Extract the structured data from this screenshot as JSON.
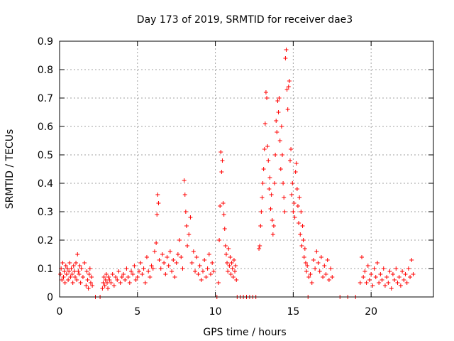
{
  "chart_data": {
    "type": "scatter",
    "title": "Day 173 of 2019, SRMTID for receiver dae3",
    "xlabel": "GPS time / hours",
    "ylabel": "SRMTID / TECUs",
    "xlim": [
      0,
      24
    ],
    "ylim": [
      0,
      0.9
    ],
    "xticks": [
      0,
      5,
      10,
      15,
      20
    ],
    "yticks": [
      0,
      0.1,
      0.2,
      0.3,
      0.4,
      0.5,
      0.6,
      0.7,
      0.8,
      0.9
    ],
    "xtick_labels": [
      "0",
      "5",
      "10",
      "15",
      "20"
    ],
    "ytick_labels": [
      "0",
      "0.1",
      "0.2",
      "0.3",
      "0.4",
      "0.5",
      "0.6",
      "0.7",
      "0.8",
      "0.9"
    ],
    "grid": true,
    "marker": "plus",
    "color": "#ff0000",
    "series": [
      {
        "name": "SRMTID",
        "x": [
          0.05,
          0.1,
          0.15,
          0.2,
          0.25,
          0.3,
          0.35,
          0.4,
          0.45,
          0.5,
          0.55,
          0.6,
          0.65,
          0.7,
          0.75,
          0.8,
          0.85,
          0.9,
          0.95,
          1.0,
          1.05,
          1.1,
          1.15,
          1.2,
          1.25,
          1.3,
          1.35,
          1.4,
          1.5,
          1.6,
          1.7,
          1.75,
          1.8,
          1.85,
          1.9,
          1.95,
          2.0,
          2.05,
          2.1,
          2.3,
          2.6,
          2.75,
          2.8,
          2.85,
          2.9,
          2.95,
          3.0,
          3.05,
          3.1,
          3.15,
          3.2,
          3.3,
          3.4,
          3.5,
          3.6,
          3.7,
          3.8,
          3.9,
          4.0,
          4.1,
          4.2,
          4.3,
          4.4,
          4.5,
          4.6,
          4.7,
          4.8,
          4.9,
          5.0,
          5.1,
          5.2,
          5.3,
          5.4,
          5.5,
          5.6,
          5.7,
          5.8,
          5.9,
          6.0,
          6.1,
          6.2,
          6.25,
          6.3,
          6.35,
          6.4,
          6.5,
          6.6,
          6.7,
          6.8,
          6.9,
          7.0,
          7.1,
          7.2,
          7.3,
          7.4,
          7.5,
          7.6,
          7.7,
          7.8,
          7.9,
          8.0,
          8.05,
          8.1,
          8.15,
          8.2,
          8.3,
          8.4,
          8.5,
          8.6,
          8.7,
          8.8,
          8.9,
          9.0,
          9.1,
          9.2,
          9.3,
          9.4,
          9.5,
          9.6,
          9.7,
          9.8,
          9.9,
          10.1,
          10.2,
          10.25,
          10.3,
          10.35,
          10.4,
          10.45,
          10.5,
          10.55,
          10.6,
          10.65,
          10.7,
          10.75,
          10.8,
          10.85,
          10.9,
          10.95,
          11.0,
          11.05,
          11.1,
          11.15,
          11.2,
          11.25,
          11.3,
          11.35,
          11.4,
          11.6,
          11.8,
          12.0,
          12.2,
          12.4,
          12.6,
          12.8,
          12.85,
          12.9,
          12.95,
          13.0,
          13.05,
          13.1,
          13.15,
          13.2,
          13.25,
          13.3,
          13.35,
          13.4,
          13.45,
          13.5,
          13.55,
          13.6,
          13.65,
          13.7,
          13.75,
          13.8,
          13.85,
          13.9,
          13.95,
          14.0,
          14.05,
          14.1,
          14.15,
          14.2,
          14.25,
          14.3,
          14.35,
          14.4,
          14.45,
          14.5,
          14.55,
          14.6,
          14.65,
          14.7,
          14.75,
          14.8,
          14.85,
          14.9,
          14.95,
          15.0,
          15.05,
          15.1,
          15.15,
          15.2,
          15.25,
          15.3,
          15.35,
          15.4,
          15.45,
          15.5,
          15.55,
          15.6,
          15.65,
          15.7,
          15.75,
          15.8,
          15.85,
          15.9,
          15.95,
          16.0,
          16.1,
          16.2,
          16.3,
          16.4,
          16.5,
          16.6,
          16.7,
          16.8,
          16.9,
          17.0,
          17.1,
          17.2,
          17.3,
          17.4,
          17.5,
          18.0,
          18.5,
          19.0,
          19.3,
          19.4,
          19.5,
          19.6,
          19.7,
          19.8,
          19.9,
          20.0,
          20.1,
          20.2,
          20.3,
          20.4,
          20.5,
          20.6,
          20.7,
          20.8,
          20.9,
          21.0,
          21.1,
          21.2,
          21.3,
          21.4,
          21.5,
          21.6,
          21.7,
          21.8,
          21.9,
          22.0,
          22.1,
          22.2,
          22.3,
          22.4,
          22.5,
          22.6,
          22.7
        ],
        "y": [
          0.08,
          0.1,
          0.06,
          0.12,
          0.07,
          0.09,
          0.05,
          0.11,
          0.08,
          0.1,
          0.06,
          0.09,
          0.12,
          0.07,
          0.1,
          0.08,
          0.05,
          0.11,
          0.09,
          0.07,
          0.12,
          0.06,
          0.15,
          0.09,
          0.08,
          0.11,
          0.05,
          0.1,
          0.07,
          0.12,
          0.04,
          0.09,
          0.06,
          0.03,
          0.08,
          0.1,
          0.05,
          0.07,
          0.04,
          0.0,
          0.0,
          0.03,
          0.05,
          0.07,
          0.04,
          0.06,
          0.08,
          0.05,
          0.03,
          0.07,
          0.06,
          0.05,
          0.08,
          0.04,
          0.07,
          0.06,
          0.09,
          0.05,
          0.07,
          0.08,
          0.06,
          0.1,
          0.07,
          0.05,
          0.09,
          0.08,
          0.11,
          0.06,
          0.07,
          0.09,
          0.12,
          0.08,
          0.1,
          0.05,
          0.14,
          0.09,
          0.07,
          0.11,
          0.1,
          0.16,
          0.19,
          0.29,
          0.36,
          0.33,
          0.13,
          0.1,
          0.15,
          0.12,
          0.08,
          0.14,
          0.11,
          0.16,
          0.09,
          0.13,
          0.07,
          0.12,
          0.15,
          0.2,
          0.14,
          0.1,
          0.41,
          0.36,
          0.3,
          0.25,
          0.18,
          0.22,
          0.28,
          0.12,
          0.16,
          0.09,
          0.14,
          0.08,
          0.11,
          0.06,
          0.09,
          0.13,
          0.07,
          0.1,
          0.15,
          0.08,
          0.12,
          0.09,
          0.0,
          0.05,
          0.2,
          0.32,
          0.51,
          0.44,
          0.48,
          0.33,
          0.29,
          0.24,
          0.18,
          0.15,
          0.12,
          0.09,
          0.17,
          0.11,
          0.14,
          0.08,
          0.12,
          0.1,
          0.07,
          0.13,
          0.09,
          0.11,
          0.06,
          0.0,
          0.0,
          0.0,
          0.0,
          0.0,
          0.0,
          0.0,
          0.17,
          0.18,
          0.25,
          0.3,
          0.35,
          0.4,
          0.45,
          0.52,
          0.61,
          0.72,
          0.7,
          0.53,
          0.48,
          0.38,
          0.42,
          0.31,
          0.36,
          0.27,
          0.22,
          0.25,
          0.4,
          0.5,
          0.62,
          0.58,
          0.69,
          0.65,
          0.7,
          0.55,
          0.45,
          0.6,
          0.5,
          0.4,
          0.35,
          0.3,
          0.84,
          0.87,
          0.73,
          0.66,
          0.74,
          0.76,
          0.48,
          0.52,
          0.36,
          0.4,
          0.3,
          0.33,
          0.28,
          0.44,
          0.47,
          0.38,
          0.32,
          0.26,
          0.35,
          0.22,
          0.3,
          0.18,
          0.25,
          0.2,
          0.14,
          0.17,
          0.12,
          0.09,
          0.11,
          0.0,
          0.07,
          0.08,
          0.05,
          0.13,
          0.1,
          0.16,
          0.12,
          0.09,
          0.14,
          0.07,
          0.11,
          0.08,
          0.13,
          0.06,
          0.1,
          0.07,
          0.0,
          0.0,
          0.0,
          0.05,
          0.14,
          0.07,
          0.09,
          0.05,
          0.11,
          0.06,
          0.08,
          0.04,
          0.1,
          0.07,
          0.12,
          0.05,
          0.08,
          0.06,
          0.1,
          0.04,
          0.07,
          0.05,
          0.09,
          0.03,
          0.08,
          0.06,
          0.1,
          0.05,
          0.07,
          0.04,
          0.09,
          0.06,
          0.08,
          0.05,
          0.1,
          0.07,
          0.13,
          0.08
        ]
      }
    ]
  }
}
